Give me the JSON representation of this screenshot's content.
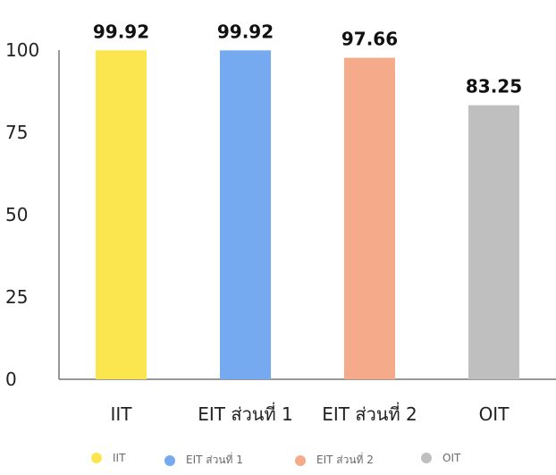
{
  "chart_data": {
    "type": "bar",
    "categories": [
      "IIT",
      "EIT ส่วนที่ 1",
      "EIT ส่วนที่ 2",
      "OIT"
    ],
    "values": [
      99.92,
      99.92,
      97.66,
      83.25
    ],
    "data_labels": [
      "99.92",
      "99.92",
      "97.66",
      "83.25"
    ],
    "colors": [
      "#fbe64f",
      "#76aaf0",
      "#f5ab8a",
      "#bfbfbf"
    ],
    "ylim": [
      0,
      100
    ],
    "yticks": [
      0,
      25,
      50,
      75,
      100
    ],
    "ytick_labels": [
      "0",
      "25",
      "50",
      "75",
      "100"
    ],
    "title": "",
    "xlabel": "",
    "ylabel": "",
    "grid": false,
    "legend_position": "bottom"
  },
  "legend": [
    {
      "label": "IIT",
      "color": "#fbe64f"
    },
    {
      "label": "EIT ส่วนที่ 1",
      "color": "#76aaf0"
    },
    {
      "label": "EIT ส่วนที่ 2",
      "color": "#f5ab8a"
    },
    {
      "label": "OIT",
      "color": "#bfbfbf"
    }
  ]
}
